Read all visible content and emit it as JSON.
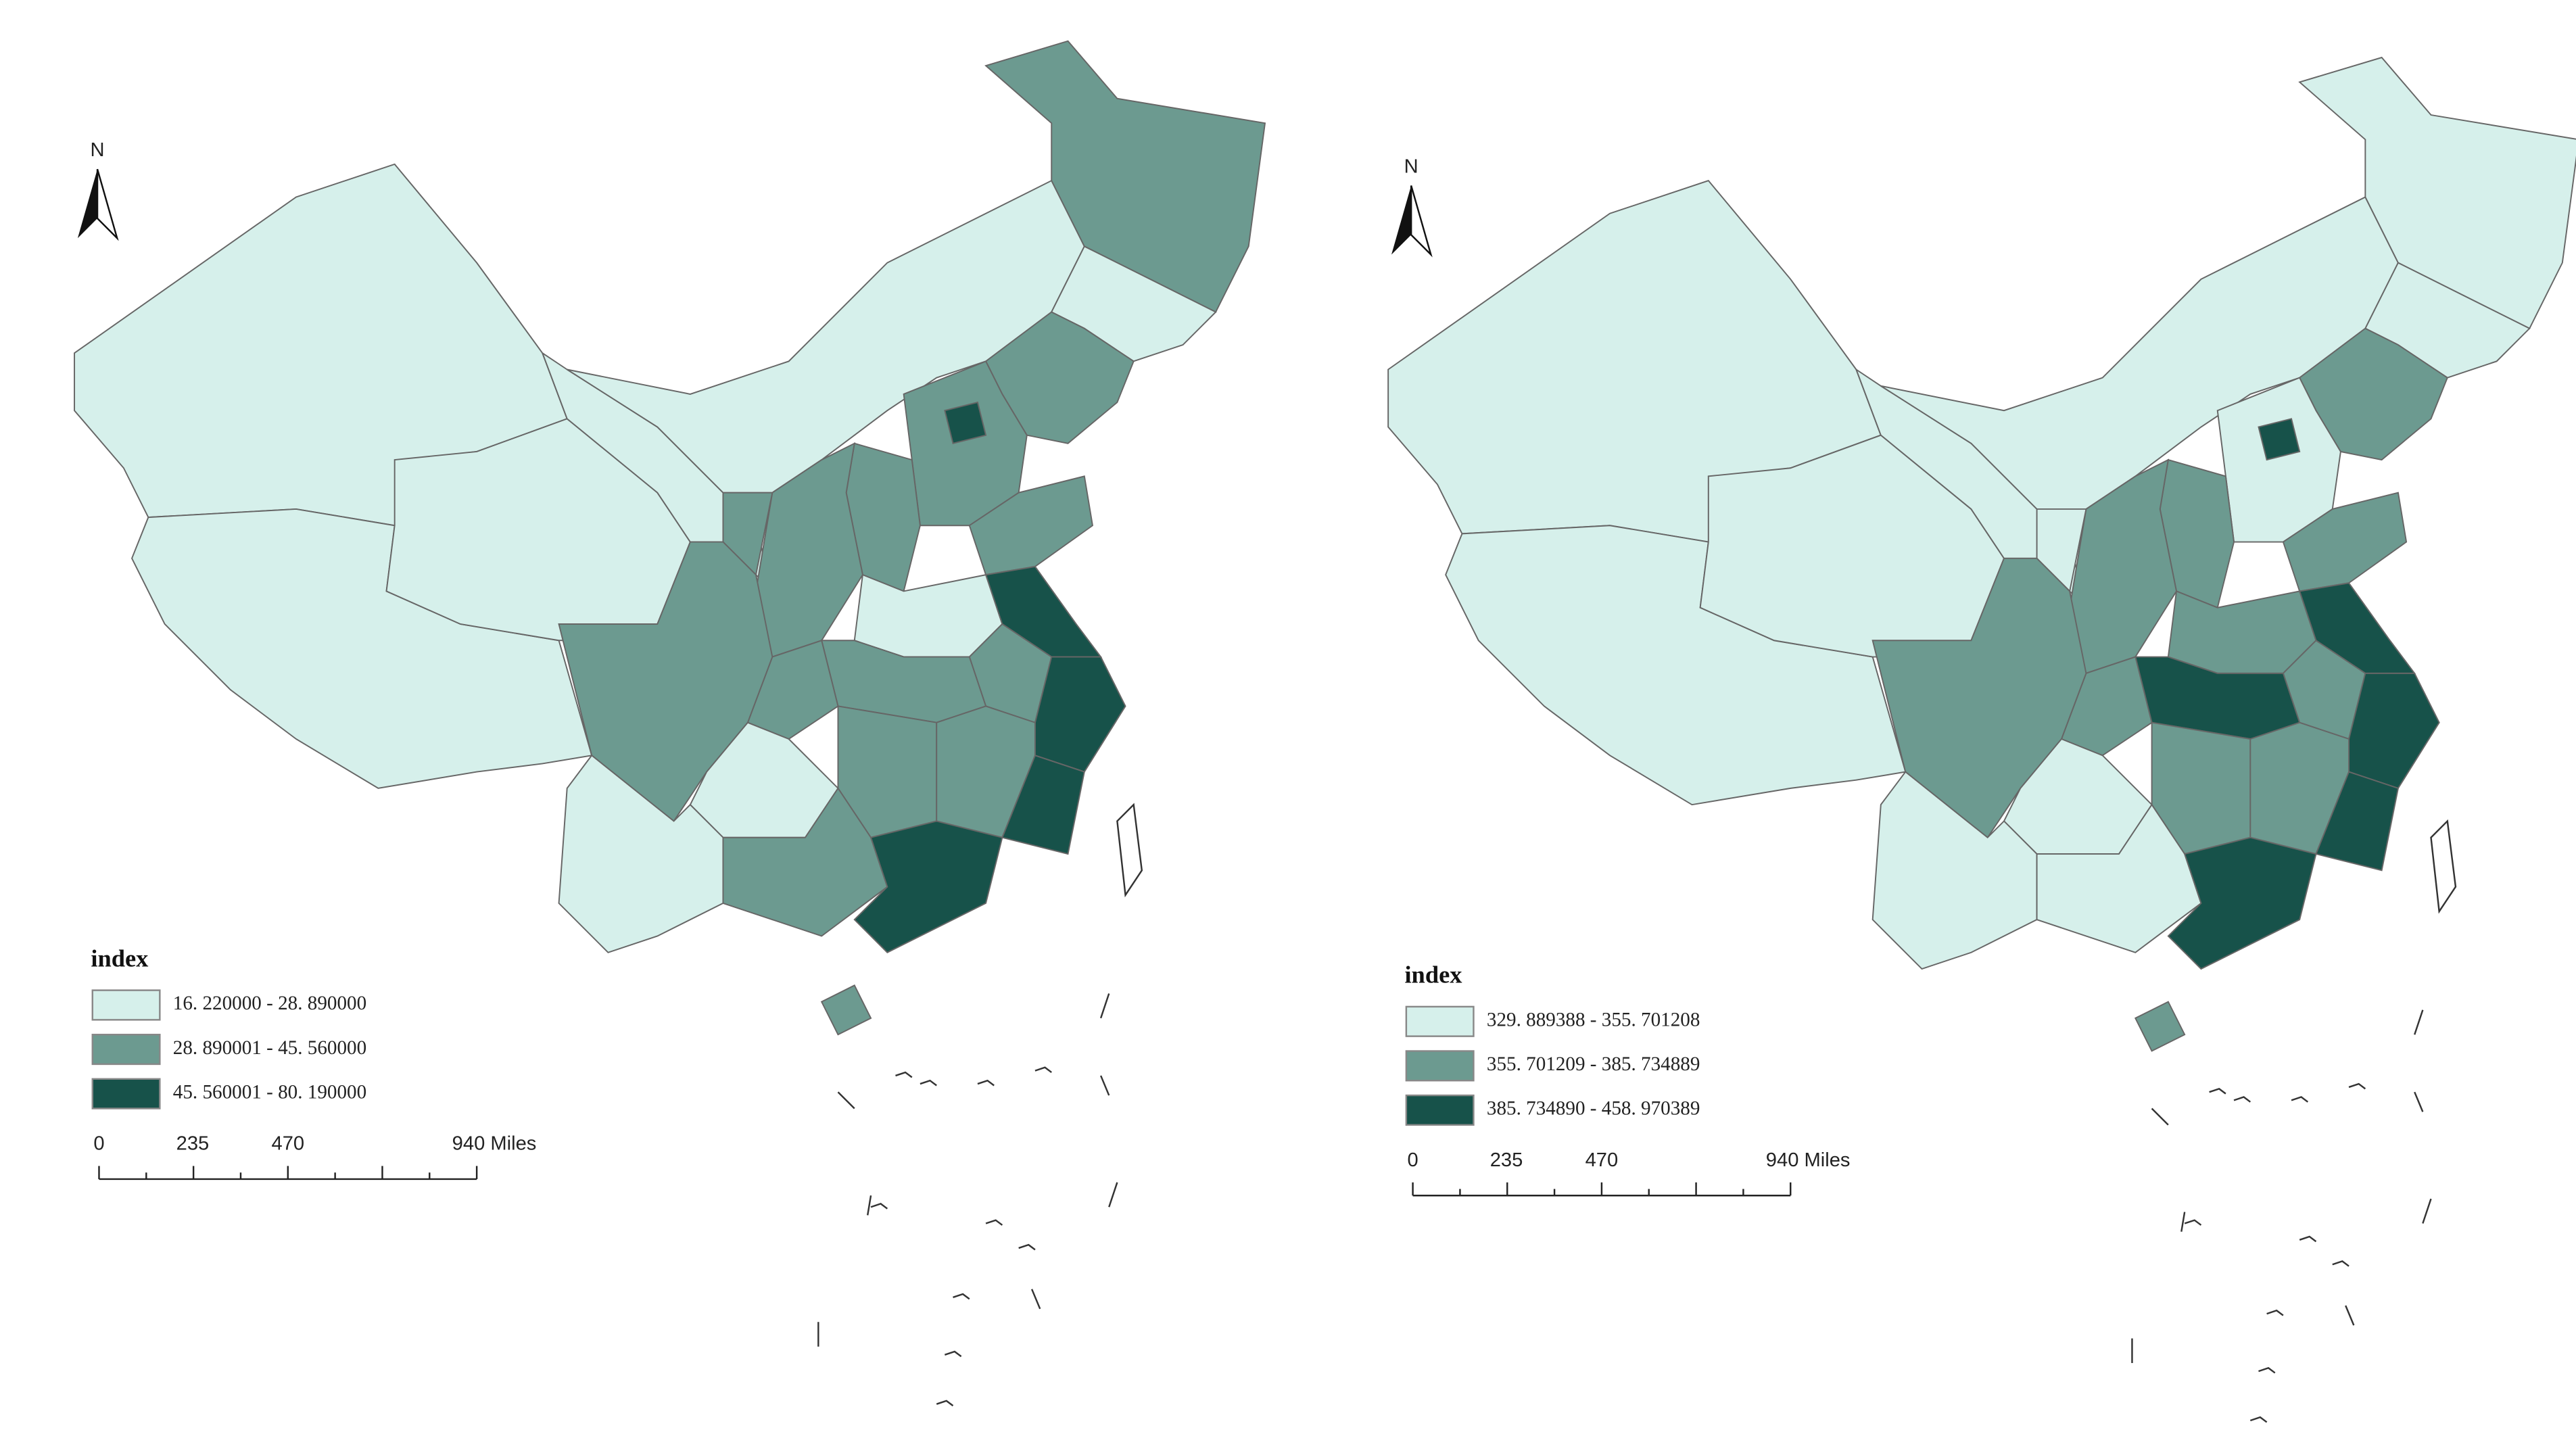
{
  "maps": [
    {
      "north_label": "N",
      "legend": {
        "title": "index",
        "classes": [
          {
            "label": "16. 220000 - 28. 890000",
            "color": "#d6f0eb"
          },
          {
            "label": "28. 890001 - 45. 560000",
            "color": "#6c9a90"
          },
          {
            "label": "45. 560001 - 80. 190000",
            "color": "#17524a"
          }
        ]
      },
      "scale_bar": [
        "0",
        "235",
        "470",
        "940 Miles"
      ]
    },
    {
      "north_label": "N",
      "legend": {
        "title": "index",
        "classes": [
          {
            "label": "329. 889388 - 355. 701208",
            "color": "#d6f0eb"
          },
          {
            "label": "355. 701209 - 385. 734889",
            "color": "#6c9a90"
          },
          {
            "label": "385. 734890 - 458. 970389",
            "color": "#17524a"
          }
        ]
      },
      "scale_bar": [
        "0",
        "235",
        "470",
        "940 Miles"
      ]
    }
  ]
}
